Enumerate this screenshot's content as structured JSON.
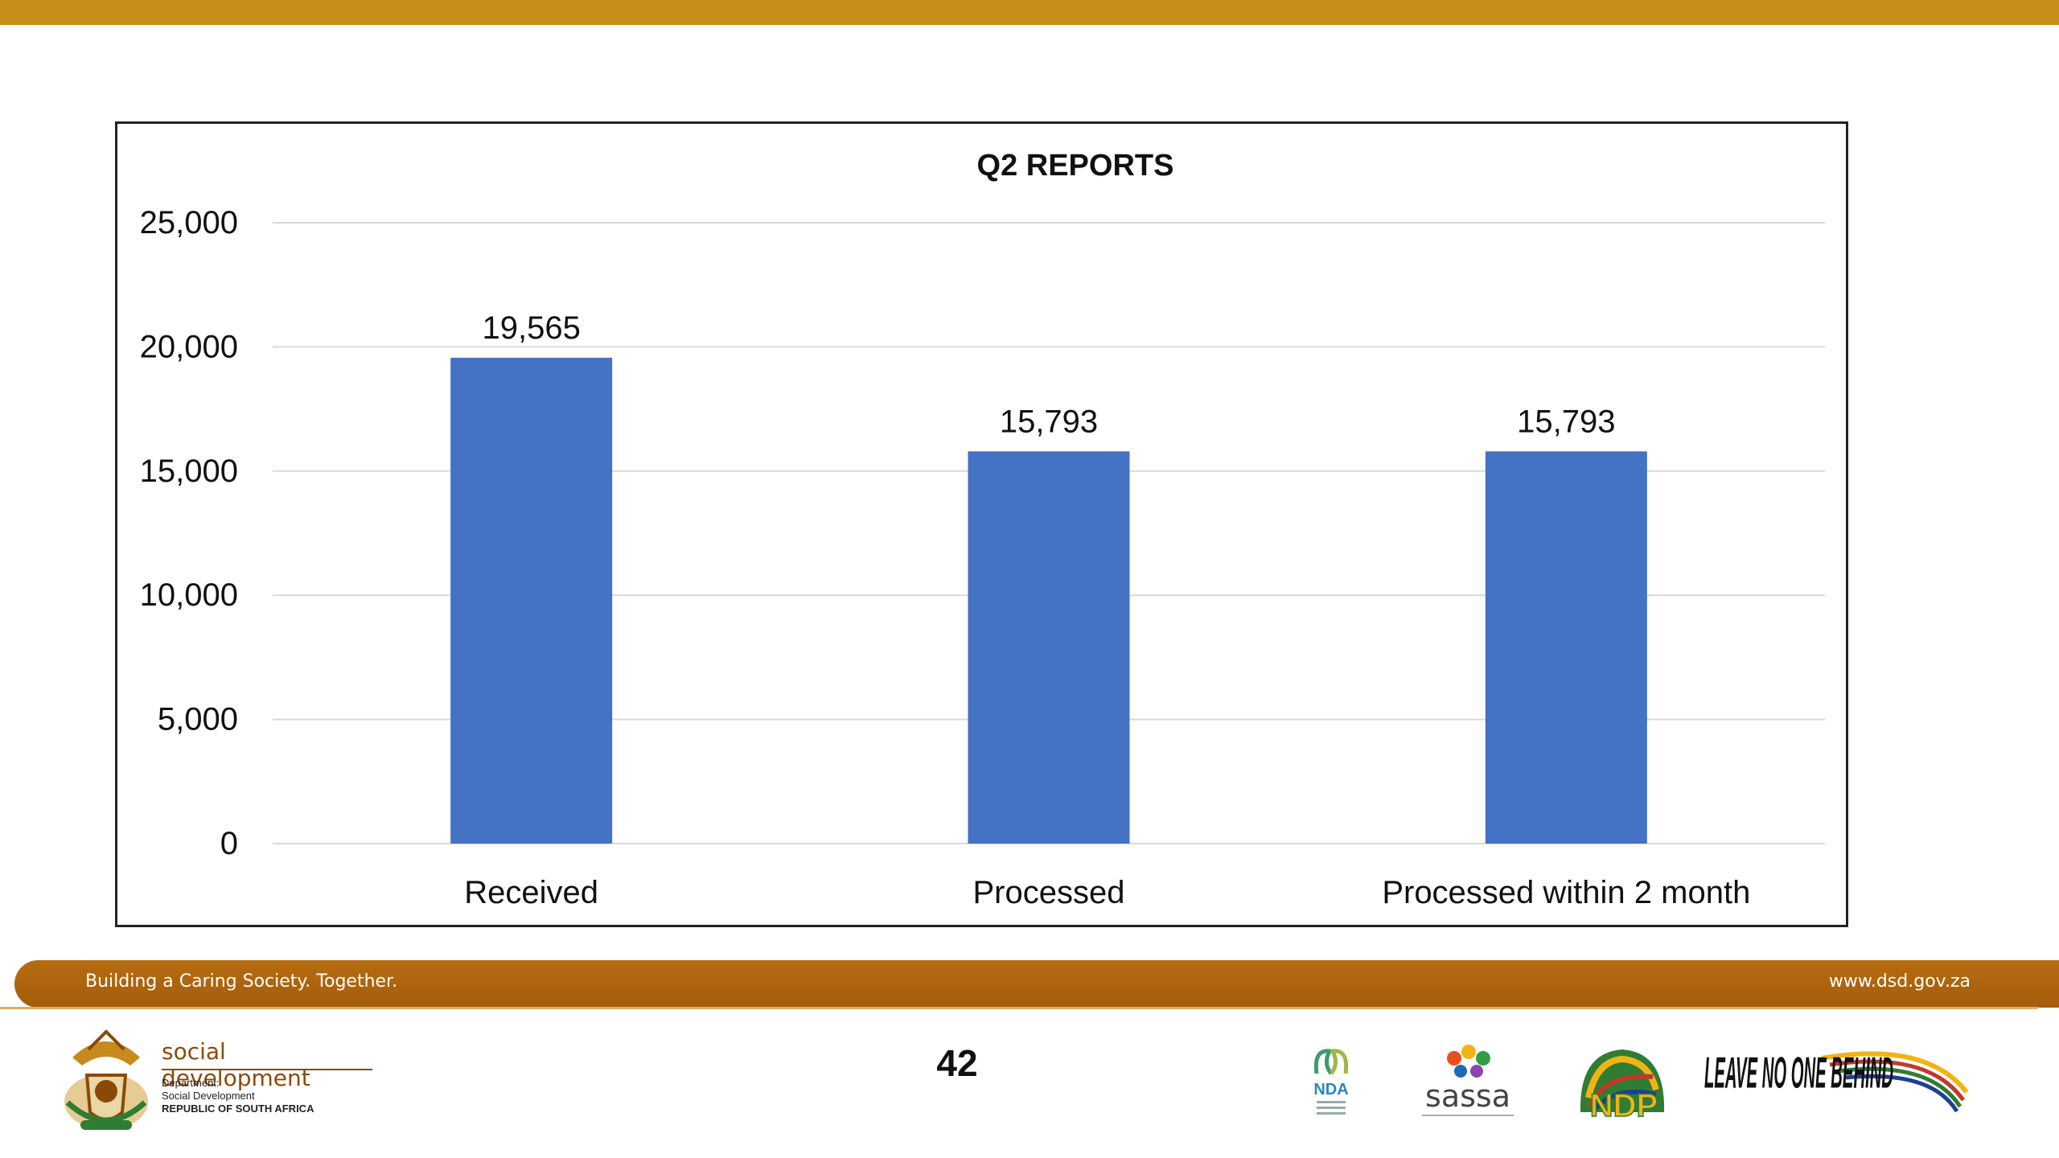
{
  "chart_data": {
    "type": "bar",
    "title": "Q2 REPORTS",
    "categories": [
      "Received",
      "Processed",
      "Processed within 2 month"
    ],
    "values": [
      19565,
      15793,
      15793
    ],
    "value_labels": [
      "19,565",
      "15,793",
      "15,793"
    ],
    "ylim": [
      0,
      25000
    ],
    "yticks": [
      0,
      5000,
      10000,
      15000,
      20000,
      25000
    ],
    "ytick_labels": [
      "0",
      "5,000",
      "10,000",
      "15,000",
      "20,000",
      "25,000"
    ],
    "grid": true,
    "bar_color": "#4472c4"
  },
  "footer": {
    "slogan": "Building a Caring Society. Together.",
    "url": "www.dsd.gov.za",
    "page_number": "42"
  },
  "logos": {
    "department": {
      "title": "social development",
      "line1": "Department:",
      "line2": "Social Development",
      "line3": "REPUBLIC OF SOUTH AFRICA"
    },
    "nda": "NDA",
    "sassa": "sassa",
    "ndp": "NDP",
    "lnob": "LEAVE NO ONE BEHIND"
  },
  "colors": {
    "top_stripe": "#c78f17",
    "footer_bar": "#a55c09"
  }
}
